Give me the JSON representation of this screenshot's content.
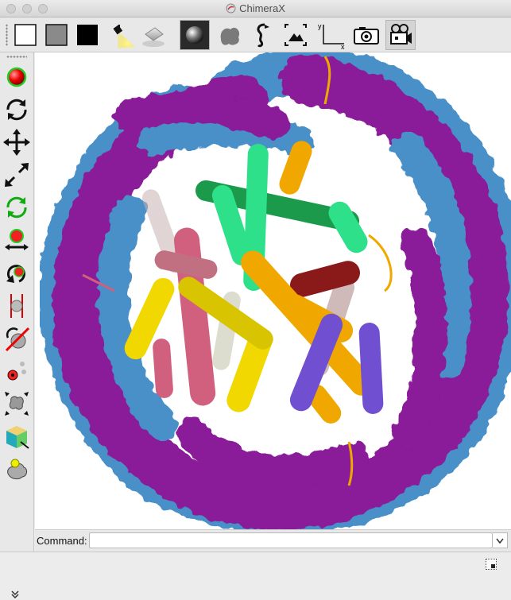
{
  "window": {
    "title": "ChimeraX"
  },
  "toolbar": {
    "buttons": [
      {
        "name": "white-background-button",
        "icon": "white-square-icon"
      },
      {
        "name": "gray-background-button",
        "icon": "gray-square-icon"
      },
      {
        "name": "black-background-button",
        "icon": "black-square-icon"
      },
      {
        "name": "simple-lighting-button",
        "icon": "spotlight-icon"
      },
      {
        "name": "soft-lighting-button",
        "icon": "soft-light-icon"
      },
      {
        "name": "full-lighting-button",
        "icon": "shaded-sphere-icon"
      },
      {
        "name": "flat-lighting-button",
        "icon": "flat-blob-icon"
      },
      {
        "name": "silhouettes-button",
        "icon": "seahorse-icon"
      },
      {
        "name": "snapshot-fit-button",
        "icon": "mountain-frame-icon"
      },
      {
        "name": "axes-button",
        "icon": "xy-axes-icon",
        "axis_labels": [
          "y",
          "x"
        ]
      },
      {
        "name": "snapshot-button",
        "icon": "camera-icon"
      },
      {
        "name": "record-movie-button",
        "icon": "movie-camera-icon"
      }
    ]
  },
  "left_toolbar": {
    "buttons": [
      {
        "name": "select-mode-button",
        "icon": "red-sphere-icon"
      },
      {
        "name": "rotate-mode-button",
        "icon": "rotate-arrows-icon"
      },
      {
        "name": "translate-mode-button",
        "icon": "four-arrows-icon"
      },
      {
        "name": "zoom-mode-button",
        "icon": "diagonal-arrows-icon"
      },
      {
        "name": "translate-selected-button",
        "icon": "green-rotate-icon"
      },
      {
        "name": "rotate-selected-button",
        "icon": "move-atoms-icon"
      },
      {
        "name": "pivot-button",
        "icon": "pivot-icon"
      },
      {
        "name": "distance-button",
        "icon": "distance-icon"
      },
      {
        "name": "delete-button",
        "icon": "delete-sphere-icon"
      },
      {
        "name": "label-button",
        "icon": "atom-label-icon"
      },
      {
        "name": "move-picked-models-button",
        "icon": "move-blob-icon"
      },
      {
        "name": "map-contour-button",
        "icon": "cube-icon"
      },
      {
        "name": "bond-rotation-button",
        "icon": "yellow-blob-icon"
      }
    ],
    "more_icon": "double-chevron-down-icon"
  },
  "colors": {
    "dna_blue": "#4a8fc8",
    "dna_purple": "#8a1a9a",
    "helix_green": "#2ee08a",
    "helix_orange": "#f0a800",
    "helix_pink": "#d0607e",
    "helix_yellow": "#f0d800",
    "helix_purple": "#7050d0",
    "helix_darkgreen": "#1a9a4a",
    "helix_darkred": "#8a1a1a"
  },
  "command": {
    "label": "Command:",
    "value": "",
    "dropdown_icon": "chevron-down-icon"
  },
  "status": {
    "icon": "log-panel-icon"
  }
}
